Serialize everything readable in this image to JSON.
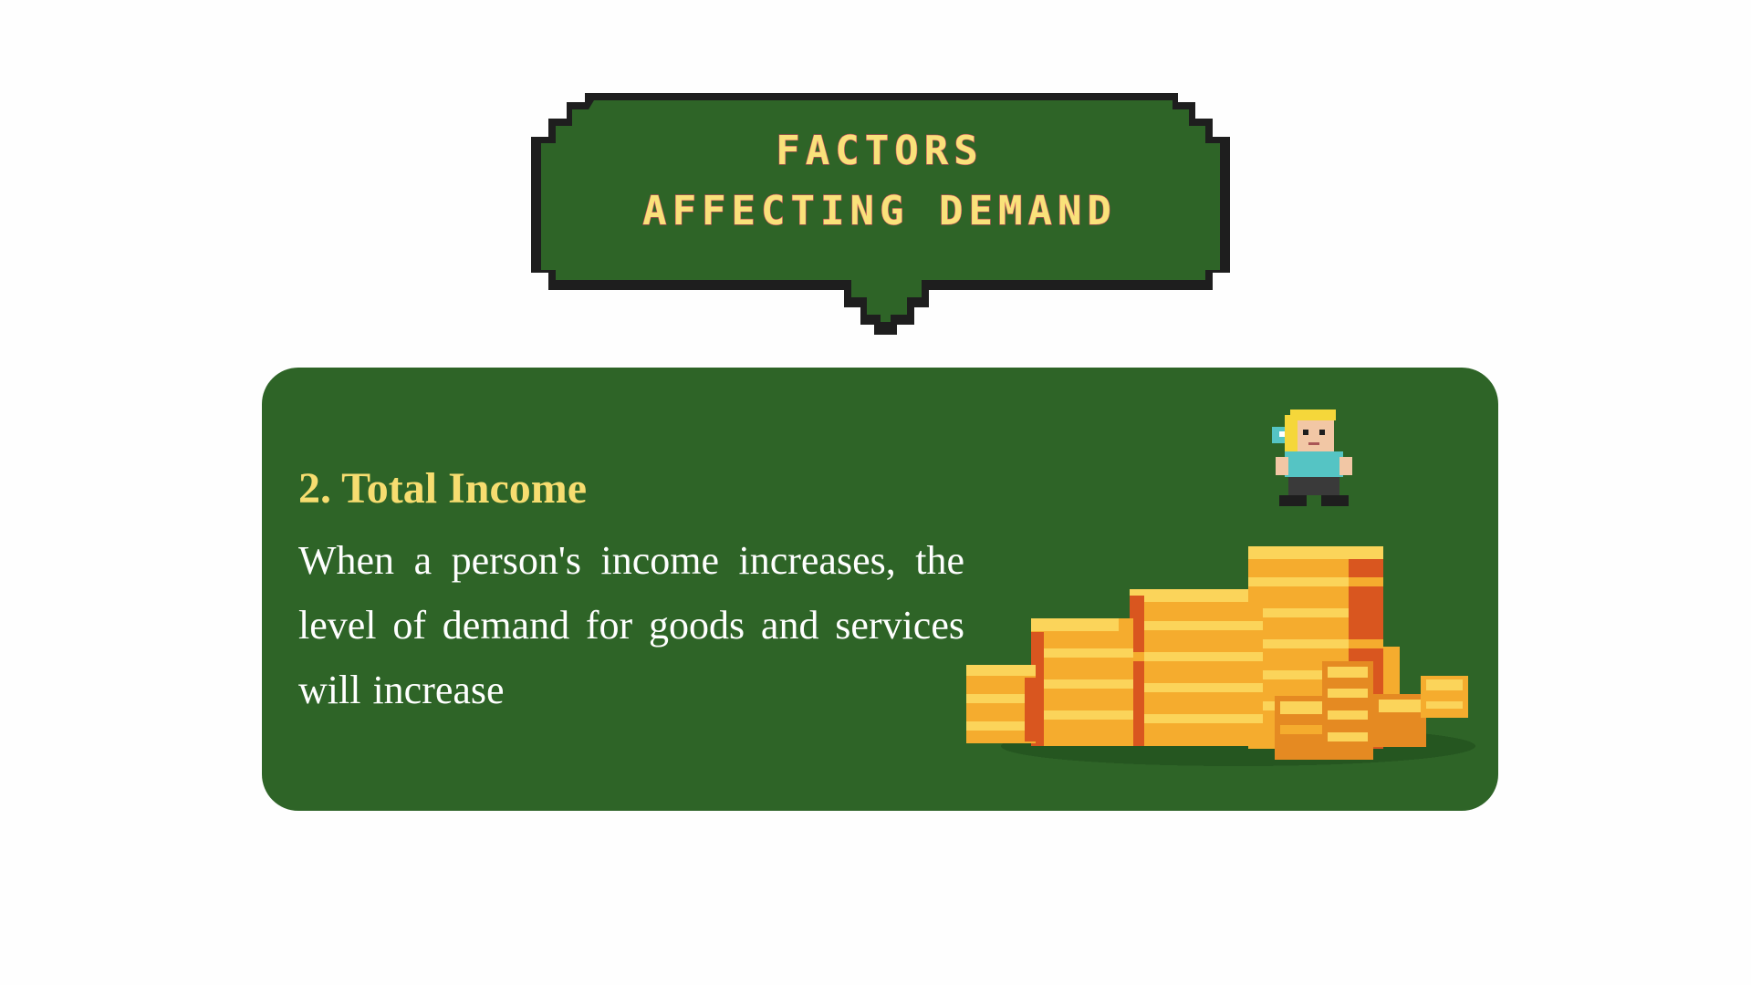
{
  "title": {
    "line1": "FACTORS",
    "line2": "AFFECTING DEMAND"
  },
  "factor": {
    "heading": "2. Total Income",
    "body": "When a person's income increases, the level of demand for goods and services will increase"
  },
  "illustration": {
    "icon": "pixel-character-on-coin-stacks",
    "colors": {
      "coin_light": "#fbd45a",
      "coin_mid": "#f5ac2e",
      "coin_dark": "#d9561f",
      "shirt": "#55c4c4",
      "hair": "#f5d73a"
    }
  },
  "theme": {
    "card_green": "#2e6427",
    "title_yellow": "#f9e27a",
    "heading_yellow": "#f7dd70",
    "outline": "#1e1e1e"
  }
}
